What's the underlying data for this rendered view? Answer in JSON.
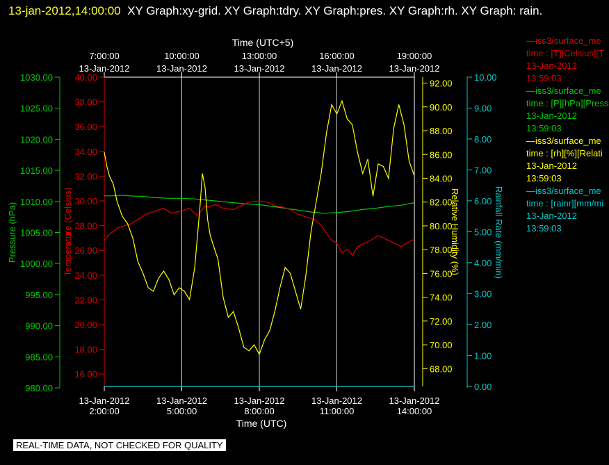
{
  "header": {
    "timestamp": "13-jan-2012,14:00:00",
    "titles": "XY Graph:xy-grid.  XY Graph:tdry.  XY Graph:pres.  XY Graph:rh.  XY Graph: rain."
  },
  "colors": {
    "pressure": "#00cc00",
    "temperature": "#dd0000",
    "humidity": "#ffff00",
    "rain": "#00cccc",
    "grid": "#ffffff"
  },
  "legend": [
    {
      "color": "#dd0000",
      "name": "iss3/surface_me",
      "units": "time : [T][Celsius][T",
      "date": "13-Jan-2012",
      "time": "13:59:03"
    },
    {
      "color": "#00cc00",
      "name": "iss3/surface_me",
      "units": "time : [P][hPa][Press",
      "date": "13-Jan-2012",
      "time": "13:59:03"
    },
    {
      "color": "#ffff00",
      "name": "iss3/surface_me",
      "units": "time : [rh][%][Relati",
      "date": "13-Jan-2012",
      "time": "13:59:03"
    },
    {
      "color": "#00cccc",
      "name": "iss3/surface_me",
      "units": "time : [rainr][mm/mi",
      "date": "13-Jan-2012",
      "time": "13:59:03"
    }
  ],
  "footer": "REAL-TIME DATA, NOT CHECKED FOR QUALITY",
  "chart_data": {
    "type": "line",
    "xlabel_bottom": "Time (UTC)",
    "xlabel_top": "Time (UTC+5)",
    "xlim": [
      2.0,
      14.0
    ],
    "x_ticks_bottom": [
      {
        "x": 2,
        "date": "13-Jan-2012",
        "time": "2:00:00"
      },
      {
        "x": 5,
        "date": "13-Jan-2012",
        "time": "5:00:00"
      },
      {
        "x": 8,
        "date": "13-Jan-2012",
        "time": "8:00:00"
      },
      {
        "x": 11,
        "date": "13-Jan-2012",
        "time": "11:00:00"
      },
      {
        "x": 14,
        "date": "13-Jan-2012",
        "time": "14:00:00"
      }
    ],
    "x_ticks_top": [
      {
        "x": 2,
        "date": "13-Jan-2012",
        "time": "7:00:00"
      },
      {
        "x": 5,
        "date": "13-Jan-2012",
        "time": "10:00:00"
      },
      {
        "x": 8,
        "date": "13-Jan-2012",
        "time": "13:00:00"
      },
      {
        "x": 11,
        "date": "13-Jan-2012",
        "time": "16:00:00"
      },
      {
        "x": 14,
        "date": "13-Jan-2012",
        "time": "19:00:00"
      }
    ],
    "axes": {
      "pressure": {
        "label": "Pressure (hPa)",
        "ylim": [
          980,
          1030
        ],
        "ticks": [
          "980.00",
          "985.00",
          "990.00",
          "995.00",
          "1000.00",
          "1005.00",
          "1010.00",
          "1015.00",
          "1020.00",
          "1025.00",
          "1030.00"
        ]
      },
      "temperature": {
        "label": "Temperature (Celsius)",
        "ylim": [
          15,
          40
        ],
        "ticks": [
          "16.00",
          "18.00",
          "20.00",
          "22.00",
          "24.00",
          "26.00",
          "28.00",
          "30.00",
          "32.00",
          "34.00",
          "36.00",
          "38.00",
          "40.00"
        ]
      },
      "humidity": {
        "label": "Relative Humidity (%)",
        "ylim": [
          66.5,
          92.5
        ],
        "ticks": [
          "68.00",
          "70.00",
          "72.00",
          "74.00",
          "76.00",
          "78.00",
          "80.00",
          "82.00",
          "84.00",
          "86.00",
          "88.00",
          "90.00",
          "92.00"
        ]
      },
      "rain": {
        "label": "Rainfall Rate (mm/min)",
        "ylim": [
          -0.05,
          10.0
        ],
        "ticks": [
          "0.00",
          "1.00",
          "2.00",
          "3.00",
          "4.00",
          "5.00",
          "6.00",
          "7.00",
          "8.00",
          "9.00",
          "10.00"
        ]
      }
    },
    "series": [
      {
        "key": "pressure",
        "axis": "pressure",
        "x": [
          2.0,
          2.3,
          2.6,
          3.0,
          3.5,
          4.0,
          4.5,
          5.0,
          5.5,
          6.0,
          6.5,
          7.0,
          7.5,
          8.0,
          8.5,
          9.0,
          9.5,
          10.0,
          10.5,
          11.0,
          11.5,
          12.0,
          12.5,
          13.0,
          13.5,
          14.0
        ],
        "y": [
          1010.9,
          1010.9,
          1011.0,
          1010.9,
          1010.8,
          1010.6,
          1010.5,
          1010.5,
          1010.4,
          1010.2,
          1010.0,
          1009.8,
          1009.6,
          1009.5,
          1009.2,
          1008.9,
          1008.6,
          1008.3,
          1008.1,
          1008.2,
          1008.4,
          1008.7,
          1008.9,
          1009.2,
          1009.4,
          1009.8
        ]
      },
      {
        "key": "temperature",
        "axis": "temperature",
        "x": [
          2.0,
          2.2,
          2.5,
          2.8,
          3.0,
          3.3,
          3.6,
          4.0,
          4.3,
          4.6,
          5.0,
          5.3,
          5.6,
          5.9,
          6.0,
          6.3,
          6.6,
          7.0,
          7.3,
          7.6,
          8.0,
          8.3,
          8.6,
          8.9,
          9.2,
          9.5,
          9.8,
          10.0,
          10.2,
          10.4,
          10.6,
          10.8,
          11.0,
          11.2,
          11.4,
          11.6,
          11.8,
          12.0,
          12.3,
          12.6,
          12.9,
          13.2,
          13.5,
          13.8,
          14.0
        ],
        "y": [
          26.8,
          27.3,
          27.8,
          28.0,
          28.1,
          28.5,
          28.9,
          29.2,
          29.4,
          29.0,
          29.2,
          29.4,
          28.8,
          29.6,
          29.5,
          29.7,
          29.4,
          29.3,
          29.6,
          29.9,
          30.0,
          29.9,
          29.6,
          29.5,
          29.3,
          28.9,
          28.7,
          28.6,
          28.4,
          28.0,
          27.4,
          26.8,
          26.6,
          25.8,
          26.1,
          25.6,
          26.3,
          26.5,
          26.8,
          27.2,
          26.9,
          26.6,
          26.3,
          26.7,
          26.9
        ]
      },
      {
        "key": "humidity",
        "axis": "humidity",
        "x": [
          2.0,
          2.1,
          2.2,
          2.35,
          2.5,
          2.7,
          2.9,
          3.1,
          3.3,
          3.5,
          3.7,
          3.9,
          4.1,
          4.3,
          4.5,
          4.7,
          4.9,
          5.1,
          5.3,
          5.5,
          5.7,
          5.8,
          5.9,
          6.0,
          6.1,
          6.2,
          6.4,
          6.6,
          6.8,
          7.0,
          7.2,
          7.4,
          7.6,
          7.8,
          8.0,
          8.2,
          8.4,
          8.6,
          8.8,
          9.0,
          9.2,
          9.4,
          9.6,
          9.8,
          10.0,
          10.2,
          10.4,
          10.6,
          10.8,
          11.0,
          11.2,
          11.4,
          11.6,
          11.8,
          12.0,
          12.2,
          12.4,
          12.6,
          12.8,
          13.0,
          13.2,
          13.4,
          13.6,
          13.8,
          14.0
        ],
        "y": [
          86.2,
          85.0,
          84.2,
          83.5,
          82.0,
          80.8,
          80.2,
          79.0,
          77.0,
          76.0,
          74.8,
          74.5,
          75.6,
          76.2,
          75.5,
          74.2,
          74.8,
          74.5,
          73.8,
          76.5,
          81.5,
          84.4,
          83.2,
          80.5,
          79.2,
          78.5,
          77.2,
          74.0,
          72.3,
          72.8,
          71.4,
          69.8,
          69.5,
          70.0,
          69.2,
          70.4,
          71.2,
          72.8,
          74.8,
          76.5,
          76.0,
          74.5,
          73.0,
          75.8,
          79.5,
          82.0,
          84.5,
          87.8,
          90.2,
          89.4,
          90.5,
          89.0,
          88.5,
          86.2,
          84.4,
          85.6,
          82.5,
          85.2,
          85.0,
          84.0,
          88.2,
          90.2,
          88.5,
          85.4,
          84.2
        ]
      },
      {
        "key": "rain",
        "axis": "rain",
        "x": [
          2.0,
          14.0
        ],
        "y": [
          0.0,
          0.0
        ]
      }
    ],
    "grid": true,
    "legend_position": "right"
  }
}
